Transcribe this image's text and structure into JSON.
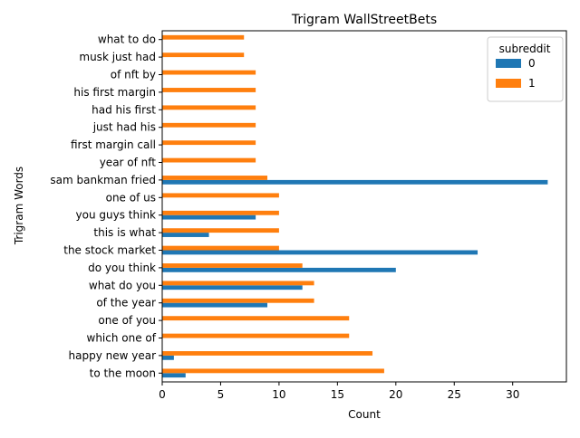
{
  "chart_data": {
    "type": "bar",
    "orientation": "horizontal",
    "title": "Trigram WallStreetBets",
    "xlabel": "Count",
    "ylabel": "Trigram Words",
    "xlim": [
      0,
      34.6
    ],
    "xticks": [
      0,
      5,
      10,
      15,
      20,
      25,
      30
    ],
    "grid": false,
    "categories": [
      "to the moon",
      "happy new year",
      "which one of",
      "one of you",
      "of the year",
      "what do you",
      "do you think",
      "the stock market",
      "this is what",
      "you guys think",
      "one of us",
      "sam bankman fried",
      "year of nft",
      "first margin call",
      "just had his",
      "had his first",
      "his first margin",
      "of nft by",
      "musk just had",
      "what to do"
    ],
    "series": [
      {
        "name": "0",
        "color": "#1f77b4",
        "values": [
          2,
          1,
          0,
          0,
          9,
          12,
          20,
          27,
          4,
          8,
          0,
          33,
          0,
          0,
          0,
          0,
          0,
          0,
          0,
          0
        ]
      },
      {
        "name": "1",
        "color": "#ff7f0e",
        "values": [
          19,
          18,
          16,
          16,
          13,
          13,
          12,
          10,
          10,
          10,
          10,
          9,
          8,
          8,
          8,
          8,
          8,
          8,
          7,
          7
        ]
      }
    ],
    "legend": {
      "title": "subreddit",
      "placement": "top-right"
    }
  }
}
